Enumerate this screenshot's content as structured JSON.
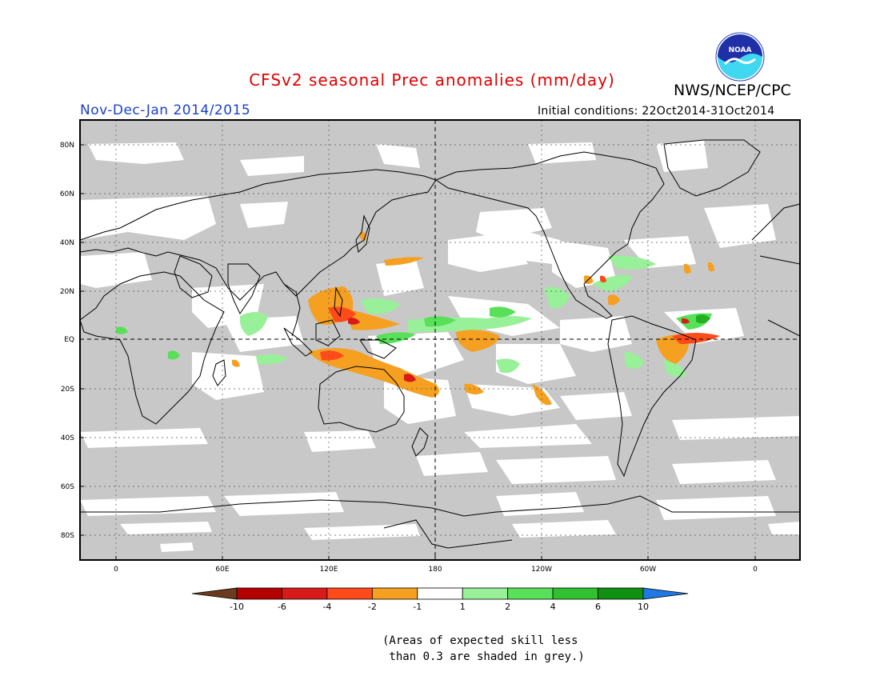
{
  "header": {
    "title": "CFSv2 seasonal Prec anomalies (mm/day)",
    "title_color": "#e00000",
    "agency": "NWS/NCEP/CPC",
    "logo_text": "NOAA",
    "season": "Nov-Dec-Jan 2014/2015",
    "season_color": "#1a3fd0",
    "initial_conditions": "Initial conditions: 22Oct2014-31Oct2014"
  },
  "map": {
    "lat_labels": [
      "80N",
      "60N",
      "40N",
      "20N",
      "EQ",
      "20S",
      "40S",
      "60S",
      "80S"
    ],
    "lon_labels": [
      "0",
      "60E",
      "120E",
      "180",
      "120W",
      "60W",
      "0"
    ],
    "colors": {
      "grey_mask": "#c8c8c8",
      "neutral": "#ffffff",
      "orange": "#f5a020",
      "orange_red": "#ff4a1a",
      "red": "#d81a1a",
      "light_green": "#98f098",
      "green": "#58e058",
      "dark_green": "#20b020"
    }
  },
  "colorbar": {
    "labels": [
      "-10",
      "-6",
      "-4",
      "-2",
      "-1",
      "1",
      "2",
      "4",
      "6",
      "10"
    ],
    "colors": [
      "#6b3a1f",
      "#b40000",
      "#d81a1a",
      "#ff4a1a",
      "#f5a020",
      "#ffffff",
      "#98f098",
      "#58e058",
      "#30c030",
      "#109010",
      "#1e78e6"
    ]
  },
  "footnote": {
    "line1": "(Areas of expected skill less",
    "line2": " than 0.3 are shaded in grey.)"
  }
}
